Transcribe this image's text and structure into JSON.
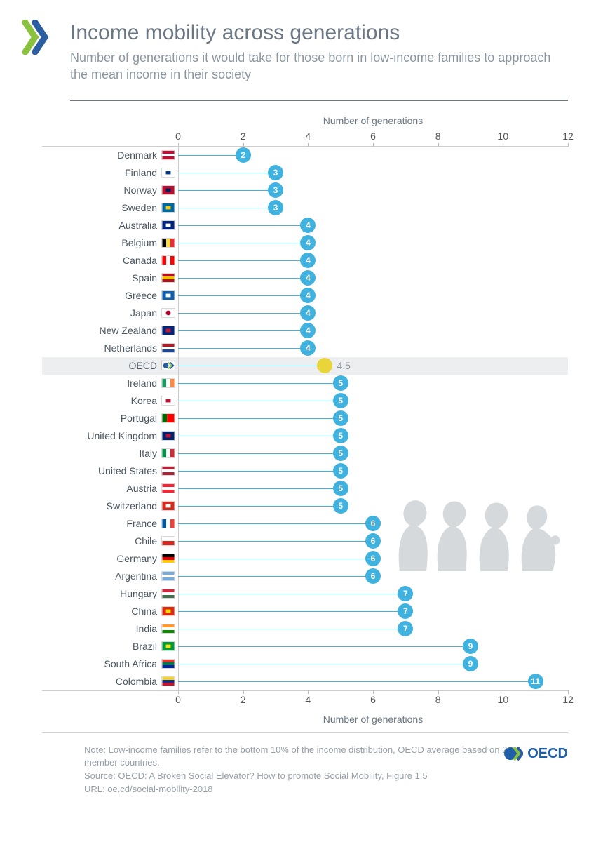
{
  "title": "Income mobility across generations",
  "subtitle": "Number of generations it would take for those born in low-income families to approach the mean income in their society",
  "chart": {
    "type": "lollipop",
    "axis_label": "Number of generations",
    "xmin": 0,
    "xmax": 12,
    "tick_values": [
      0,
      2,
      4,
      6,
      8,
      10,
      12
    ],
    "axis_font_size": 14,
    "axis_color": "#6b7785",
    "tick_font_size": 14,
    "tick_color": "#555555",
    "dot_radius": 11,
    "dot_font_size": 12,
    "line_color": "#3fb2e0",
    "background_color": "#ffffff",
    "highlight_background": "#edeeef",
    "rows": [
      {
        "label": "Denmark",
        "value": 2,
        "color": "#3fb2e0",
        "highlight": false,
        "flag": {
          "type": "tricolor_h",
          "c": [
            "#c60c30",
            "#ffffff",
            "#c60c30"
          ],
          "note": "dk"
        }
      },
      {
        "label": "Finland",
        "value": 3,
        "color": "#3fb2e0",
        "highlight": false,
        "flag": {
          "type": "solid",
          "c": [
            "#ffffff",
            "#003580"
          ]
        }
      },
      {
        "label": "Norway",
        "value": 3,
        "color": "#3fb2e0",
        "highlight": false,
        "flag": {
          "type": "solid",
          "c": [
            "#ba0c2f",
            "#00205b"
          ]
        }
      },
      {
        "label": "Sweden",
        "value": 3,
        "color": "#3fb2e0",
        "highlight": false,
        "flag": {
          "type": "solid",
          "c": [
            "#006aa7",
            "#fecc00"
          ]
        }
      },
      {
        "label": "Australia",
        "value": 4,
        "color": "#3fb2e0",
        "highlight": false,
        "flag": {
          "type": "solid",
          "c": [
            "#00247d",
            "#ffffff"
          ]
        }
      },
      {
        "label": "Belgium",
        "value": 4,
        "color": "#3fb2e0",
        "highlight": false,
        "flag": {
          "type": "tricolor_v",
          "c": [
            "#000000",
            "#fae042",
            "#ed2939"
          ]
        }
      },
      {
        "label": "Canada",
        "value": 4,
        "color": "#3fb2e0",
        "highlight": false,
        "flag": {
          "type": "tricolor_v",
          "c": [
            "#ff0000",
            "#ffffff",
            "#ff0000"
          ]
        }
      },
      {
        "label": "Spain",
        "value": 4,
        "color": "#3fb2e0",
        "highlight": false,
        "flag": {
          "type": "tricolor_h",
          "c": [
            "#aa151b",
            "#f1bf00",
            "#aa151b"
          ]
        }
      },
      {
        "label": "Greece",
        "value": 4,
        "color": "#3fb2e0",
        "highlight": false,
        "flag": {
          "type": "solid",
          "c": [
            "#0d5eaf",
            "#ffffff"
          ]
        }
      },
      {
        "label": "Japan",
        "value": 4,
        "color": "#3fb2e0",
        "highlight": false,
        "flag": {
          "type": "japan",
          "c": [
            "#ffffff",
            "#bc002d"
          ]
        }
      },
      {
        "label": "New Zealand",
        "value": 4,
        "color": "#3fb2e0",
        "highlight": false,
        "flag": {
          "type": "solid",
          "c": [
            "#00247d",
            "#cc142b"
          ]
        }
      },
      {
        "label": "Netherlands",
        "value": 4,
        "color": "#3fb2e0",
        "highlight": false,
        "flag": {
          "type": "tricolor_h",
          "c": [
            "#ae1c28",
            "#ffffff",
            "#21468b"
          ]
        }
      },
      {
        "label": "OECD",
        "value": 4.5,
        "color": "#e7d53a",
        "highlight": true,
        "label_outside": true,
        "flag": {
          "type": "oecd",
          "c": [
            "#2b5ea1",
            "#8ac240"
          ]
        }
      },
      {
        "label": "Ireland",
        "value": 5,
        "color": "#3fb2e0",
        "highlight": false,
        "flag": {
          "type": "tricolor_v",
          "c": [
            "#169b62",
            "#ffffff",
            "#ff883e"
          ]
        }
      },
      {
        "label": "Korea",
        "value": 5,
        "color": "#3fb2e0",
        "highlight": false,
        "flag": {
          "type": "solid",
          "c": [
            "#ffffff",
            "#c60c30"
          ]
        }
      },
      {
        "label": "Portugal",
        "value": 5,
        "color": "#3fb2e0",
        "highlight": false,
        "flag": {
          "type": "bicolor_v",
          "c": [
            "#006600",
            "#ff0000"
          ]
        }
      },
      {
        "label": "United Kingdom",
        "value": 5,
        "color": "#3fb2e0",
        "highlight": false,
        "flag": {
          "type": "solid",
          "c": [
            "#012169",
            "#c8102e"
          ]
        }
      },
      {
        "label": "Italy",
        "value": 5,
        "color": "#3fb2e0",
        "highlight": false,
        "flag": {
          "type": "tricolor_v",
          "c": [
            "#009246",
            "#ffffff",
            "#ce2b37"
          ]
        }
      },
      {
        "label": "United States",
        "value": 5,
        "color": "#3fb2e0",
        "highlight": false,
        "flag": {
          "type": "tricolor_h",
          "c": [
            "#b22234",
            "#ffffff",
            "#b22234"
          ]
        }
      },
      {
        "label": "Austria",
        "value": 5,
        "color": "#3fb2e0",
        "highlight": false,
        "flag": {
          "type": "tricolor_h",
          "c": [
            "#ed2939",
            "#ffffff",
            "#ed2939"
          ]
        }
      },
      {
        "label": "Switzerland",
        "value": 5,
        "color": "#3fb2e0",
        "highlight": false,
        "flag": {
          "type": "solid",
          "c": [
            "#d52b1e",
            "#ffffff"
          ]
        }
      },
      {
        "label": "France",
        "value": 6,
        "color": "#3fb2e0",
        "highlight": false,
        "flag": {
          "type": "tricolor_v",
          "c": [
            "#0055a4",
            "#ffffff",
            "#ef4135"
          ]
        }
      },
      {
        "label": "Chile",
        "value": 6,
        "color": "#3fb2e0",
        "highlight": false,
        "flag": {
          "type": "bicolor_h",
          "c": [
            "#ffffff",
            "#d52b1e"
          ]
        }
      },
      {
        "label": "Germany",
        "value": 6,
        "color": "#3fb2e0",
        "highlight": false,
        "flag": {
          "type": "tricolor_h",
          "c": [
            "#000000",
            "#dd0000",
            "#ffce00"
          ]
        }
      },
      {
        "label": "Argentina",
        "value": 6,
        "color": "#3fb2e0",
        "highlight": false,
        "flag": {
          "type": "tricolor_h",
          "c": [
            "#74acdf",
            "#ffffff",
            "#74acdf"
          ]
        }
      },
      {
        "label": "Hungary",
        "value": 7,
        "color": "#3fb2e0",
        "highlight": false,
        "flag": {
          "type": "tricolor_h",
          "c": [
            "#cd2a3e",
            "#ffffff",
            "#436f4d"
          ]
        }
      },
      {
        "label": "China",
        "value": 7,
        "color": "#3fb2e0",
        "highlight": false,
        "flag": {
          "type": "solid",
          "c": [
            "#de2910",
            "#ffde00"
          ]
        }
      },
      {
        "label": "India",
        "value": 7,
        "color": "#3fb2e0",
        "highlight": false,
        "flag": {
          "type": "tricolor_h",
          "c": [
            "#ff9933",
            "#ffffff",
            "#138808"
          ]
        }
      },
      {
        "label": "Brazil",
        "value": 9,
        "color": "#3fb2e0",
        "highlight": false,
        "flag": {
          "type": "solid",
          "c": [
            "#009b3a",
            "#fedf00"
          ]
        }
      },
      {
        "label": "South Africa",
        "value": 9,
        "color": "#3fb2e0",
        "highlight": false,
        "flag": {
          "type": "tricolor_h",
          "c": [
            "#de3831",
            "#007a4d",
            "#002395"
          ]
        }
      },
      {
        "label": "Colombia",
        "value": 11,
        "color": "#3fb2e0",
        "highlight": false,
        "flag": {
          "type": "tricolor_h",
          "c": [
            "#fcd116",
            "#003893",
            "#ce1126"
          ]
        }
      }
    ]
  },
  "silhouettes_color": "#cfd3d7",
  "footer": {
    "note": "Note: Low-income families refer to the bottom 10% of the income distribution, OECD average based on 24 member countries.",
    "source": "Source: OECD: A Broken Social Elevator? How to promote Social Mobility, Figure 1.5",
    "url": "URL: oe.cd/social-mobility-2018",
    "logo_text": "OECD",
    "logo_colors": {
      "globe": "#1f5fa8",
      "chev1": "#8ac240",
      "chev2": "#2b5ea1"
    }
  },
  "logo_colors": {
    "chev1": "#8ac240",
    "chev2": "#2b5ea1"
  }
}
